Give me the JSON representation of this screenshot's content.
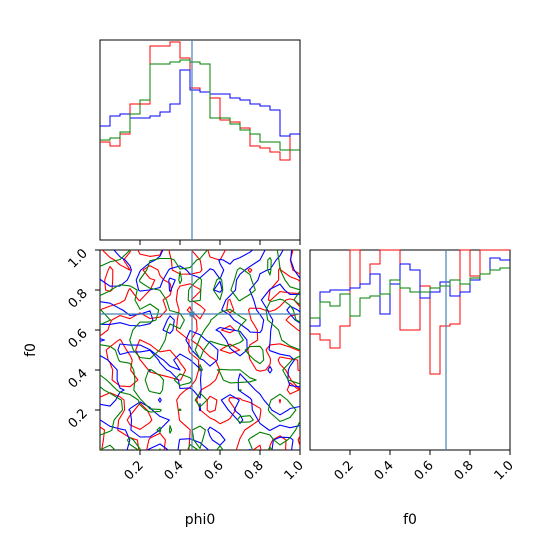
{
  "chart_data": [
    {
      "type": "histogram",
      "panel": "phi0-marginal",
      "xlim": [
        0,
        1
      ],
      "bins": [
        0.0,
        0.05,
        0.1,
        0.15,
        0.2,
        0.25,
        0.3,
        0.35,
        0.4,
        0.45,
        0.5,
        0.55,
        0.6,
        0.65,
        0.7,
        0.75,
        0.8,
        0.85,
        0.9,
        0.95,
        1.0
      ],
      "truth": 0.46,
      "series": [
        {
          "color": "#ff0000",
          "values": [
            0.49,
            0.47,
            0.53,
            0.68,
            0.68,
            0.97,
            0.97,
            0.99,
            0.91,
            0.76,
            0.74,
            0.71,
            0.6,
            0.59,
            0.56,
            0.47,
            0.46,
            0.44,
            0.4,
            0.53
          ]
        },
        {
          "color": "#0000ff",
          "values": [
            0.57,
            0.62,
            0.63,
            0.61,
            0.61,
            0.62,
            0.64,
            0.68,
            0.85,
            0.75,
            0.74,
            0.73,
            0.73,
            0.71,
            0.7,
            0.68,
            0.67,
            0.65,
            0.52,
            0.53
          ]
        },
        {
          "color": "#008000",
          "values": [
            0.5,
            0.51,
            0.54,
            0.63,
            0.7,
            0.88,
            0.88,
            0.89,
            0.9,
            0.89,
            0.88,
            0.61,
            0.61,
            0.58,
            0.55,
            0.53,
            0.49,
            0.49,
            0.45,
            0.45
          ]
        }
      ]
    },
    {
      "type": "histogram",
      "panel": "f0-marginal",
      "xlim": [
        0,
        1
      ],
      "bins": [
        0.0,
        0.05,
        0.1,
        0.15,
        0.2,
        0.25,
        0.3,
        0.35,
        0.4,
        0.45,
        0.5,
        0.55,
        0.6,
        0.65,
        0.7,
        0.75,
        0.8,
        0.85,
        0.9,
        0.95,
        1.0
      ],
      "truth": 0.68,
      "series": [
        {
          "color": "#ff0000",
          "values": [
            0.58,
            0.55,
            0.51,
            0.62,
            1.0,
            0.83,
            0.93,
            1.0,
            1.0,
            0.6,
            0.6,
            0.82,
            0.38,
            0.62,
            0.63,
            1.0,
            0.87,
            1.0,
            1.0,
            1.0
          ]
        },
        {
          "color": "#0000ff",
          "values": [
            0.62,
            0.79,
            0.8,
            0.8,
            0.81,
            0.83,
            0.88,
            0.68,
            0.83,
            0.93,
            0.9,
            0.76,
            0.79,
            0.84,
            0.77,
            0.79,
            0.85,
            0.88,
            0.96,
            0.95
          ]
        },
        {
          "color": "#008000",
          "values": [
            0.66,
            0.74,
            0.72,
            0.78,
            0.67,
            0.76,
            0.77,
            0.78,
            0.85,
            0.81,
            0.79,
            0.79,
            0.81,
            0.82,
            0.85,
            0.83,
            0.86,
            0.88,
            0.9,
            0.91
          ]
        }
      ]
    },
    {
      "type": "contour",
      "panel": "phi0-f0-joint",
      "xlabel": "phi0",
      "ylabel": "f0",
      "xlim": [
        0,
        1
      ],
      "ylim": [
        0,
        1
      ],
      "truth": {
        "x": 0.46,
        "y": 0.68
      },
      "series": [
        {
          "color": "#ff0000"
        },
        {
          "color": "#0000ff"
        },
        {
          "color": "#008000"
        }
      ]
    }
  ],
  "axes": {
    "x_ticks": [
      "0.2",
      "0.4",
      "0.6",
      "0.8",
      "1.0"
    ],
    "y_ticks": [
      "0.2",
      "0.4",
      "0.6",
      "0.8",
      "1.0"
    ],
    "xlabel_left": "phi0",
    "xlabel_right": "f0",
    "ylabel": "f0"
  },
  "colors": {
    "truth": "#4682b4"
  }
}
